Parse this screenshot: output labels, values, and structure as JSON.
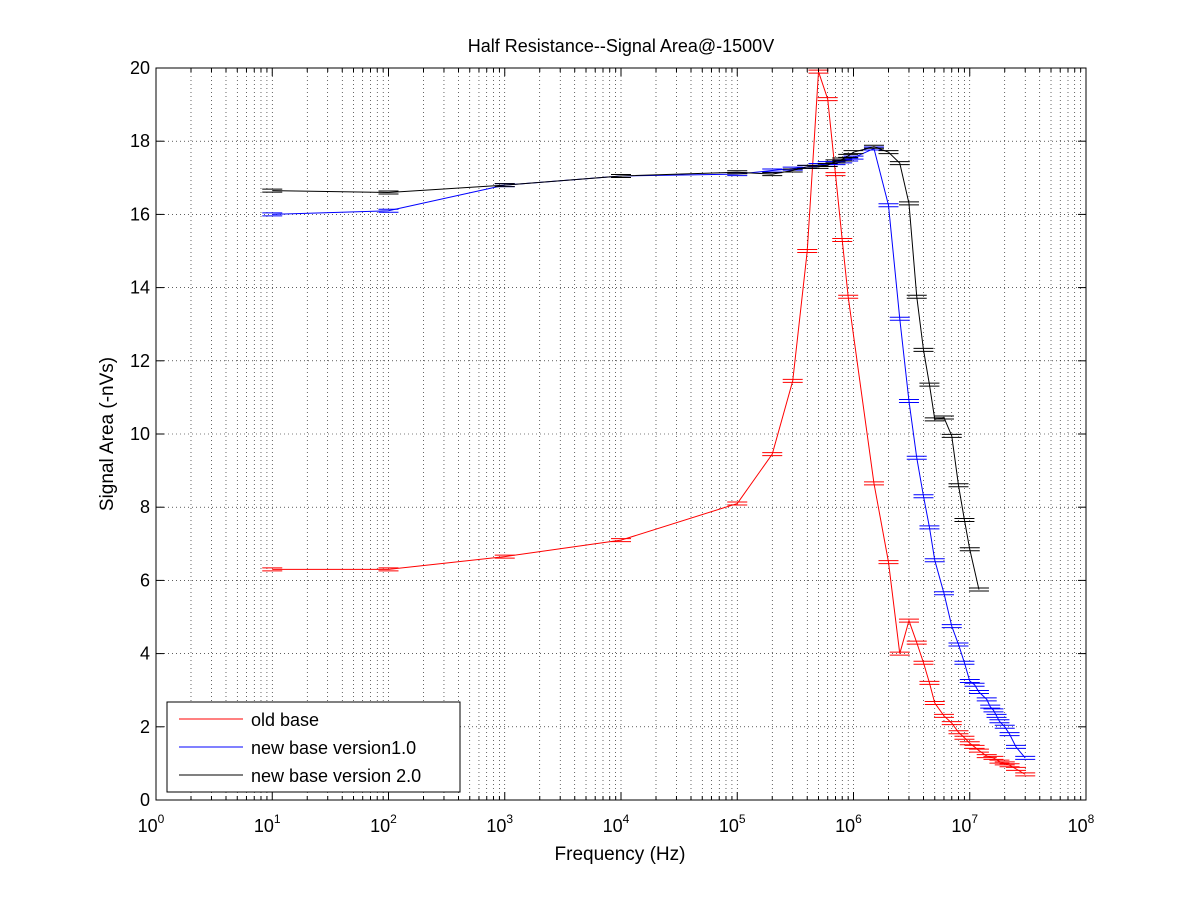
{
  "chart_data": {
    "type": "line",
    "title": "Half Resistance--Signal Area@-1500V",
    "xlabel": "Frequency (Hz)",
    "ylabel": "Signal Area (-nVs)",
    "xscale": "log",
    "xlim": [
      1,
      100000000
    ],
    "ylim": [
      0,
      20
    ],
    "x_ticks": [
      1,
      10,
      100,
      1000,
      10000,
      100000,
      1000000,
      10000000,
      100000000
    ],
    "x_tick_labels": [
      {
        "base": "10",
        "exp": "0"
      },
      {
        "base": "10",
        "exp": "1"
      },
      {
        "base": "10",
        "exp": "2"
      },
      {
        "base": "10",
        "exp": "3"
      },
      {
        "base": "10",
        "exp": "4"
      },
      {
        "base": "10",
        "exp": "5"
      },
      {
        "base": "10",
        "exp": "6"
      },
      {
        "base": "10",
        "exp": "7"
      },
      {
        "base": "10",
        "exp": "8"
      }
    ],
    "y_ticks": [
      0,
      2,
      4,
      6,
      8,
      10,
      12,
      14,
      16,
      18,
      20
    ],
    "y_tick_labels": [
      "0",
      "2",
      "4",
      "6",
      "8",
      "10",
      "12",
      "14",
      "16",
      "18",
      "20"
    ],
    "grid": true,
    "legend_position": "bottom-left",
    "series": [
      {
        "name": "old base",
        "color": "#ff0000",
        "x": [
          10,
          100,
          1000,
          10000,
          100000,
          200000,
          300000,
          400000,
          500000,
          600000,
          700000,
          800000,
          900000,
          1500000,
          2000000,
          2500000,
          3000000,
          3500000,
          4000000,
          4500000,
          5000000,
          6000000,
          7000000,
          8000000,
          9000000,
          10000000,
          11000000,
          12000000,
          14000000,
          16000000,
          18000000,
          20000000,
          22000000,
          25000000,
          30000000
        ],
        "y": [
          6.3,
          6.3,
          6.65,
          7.1,
          8.1,
          9.45,
          11.45,
          15.0,
          19.9,
          19.15,
          17.1,
          15.3,
          13.75,
          8.65,
          6.5,
          4.0,
          4.9,
          4.3,
          3.75,
          3.2,
          2.65,
          2.3,
          2.1,
          1.85,
          1.7,
          1.55,
          1.45,
          1.35,
          1.2,
          1.15,
          1.05,
          1.0,
          0.95,
          0.85,
          0.7
        ]
      },
      {
        "name": "new base version1.0",
        "color": "#0000ff",
        "x": [
          10,
          100,
          1000,
          10000,
          100000,
          200000,
          300000,
          400000,
          500000,
          600000,
          700000,
          800000,
          900000,
          1000000,
          1500000,
          2000000,
          2500000,
          3000000,
          3500000,
          4000000,
          4500000,
          5000000,
          6000000,
          7000000,
          8000000,
          9000000,
          10000000,
          11000000,
          12000000,
          14000000,
          15000000,
          16000000,
          17000000,
          18000000,
          20000000,
          22000000,
          25000000,
          30000000
        ],
        "y": [
          16.0,
          16.1,
          16.8,
          17.05,
          17.1,
          17.2,
          17.25,
          17.3,
          17.35,
          17.4,
          17.4,
          17.45,
          17.5,
          17.55,
          17.8,
          16.25,
          13.15,
          10.9,
          9.35,
          8.3,
          7.45,
          6.55,
          5.65,
          4.75,
          4.25,
          3.75,
          3.25,
          3.15,
          2.95,
          2.75,
          2.55,
          2.45,
          2.3,
          2.15,
          2.0,
          1.8,
          1.45,
          1.15
        ]
      },
      {
        "name": "new base version 2.0",
        "color": "#000000",
        "x": [
          10,
          100,
          1000,
          10000,
          100000,
          200000,
          300000,
          400000,
          500000,
          600000,
          700000,
          800000,
          900000,
          1000000,
          1500000,
          2000000,
          2500000,
          3000000,
          3500000,
          4000000,
          4500000,
          5000000,
          6000000,
          7000000,
          8000000,
          9000000,
          10000000,
          12000000
        ],
        "y": [
          16.65,
          16.6,
          16.8,
          17.05,
          17.15,
          17.1,
          17.2,
          17.3,
          17.3,
          17.35,
          17.45,
          17.5,
          17.6,
          17.7,
          17.85,
          17.7,
          17.4,
          16.3,
          13.75,
          12.3,
          11.35,
          10.4,
          10.45,
          9.95,
          8.6,
          7.65,
          6.85,
          5.75
        ]
      }
    ]
  }
}
